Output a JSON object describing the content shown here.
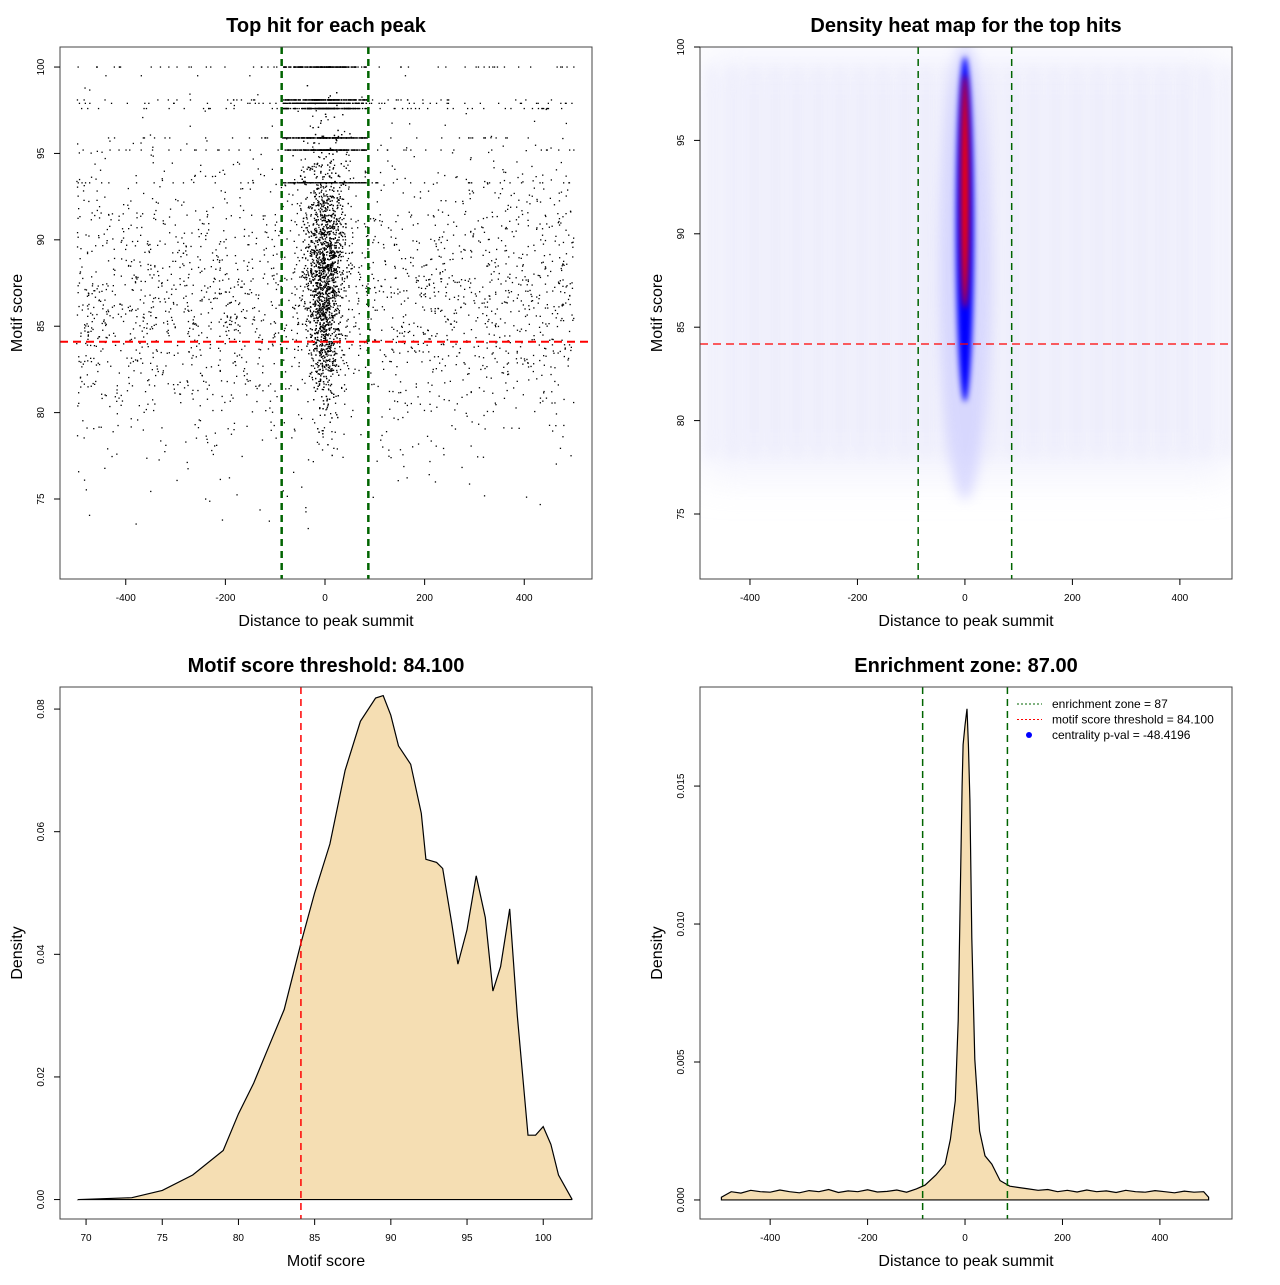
{
  "colors": {
    "threshold": "#ff0000",
    "zone": "#006400",
    "fill": "#f5deb3",
    "points": "#000000",
    "heat_low": "#0000ff",
    "heat_high": "#ff0000",
    "legend_dot": "#0000ff"
  },
  "chart_data": [
    {
      "type": "scatter",
      "title": "Top hit for each peak",
      "xlabel": "Distance to peak summit",
      "ylabel": "Motif score",
      "xlim": [
        -532,
        536
      ],
      "ylim": [
        70.37,
        101.16
      ],
      "xticks": [
        -400,
        -200,
        0,
        200,
        400
      ],
      "yticks": [
        75,
        80,
        85,
        90,
        95,
        100
      ],
      "hlines": [
        {
          "y": 84.1,
          "color": "#ff0000",
          "style": "dashed"
        }
      ],
      "vlines": [
        {
          "x": -87,
          "color": "#006400",
          "style": "dashed"
        },
        {
          "x": 87,
          "color": "#006400",
          "style": "dashed"
        }
      ],
      "description_of_points": "dense cluster centered at 0 (scores ~76-100), sparse uniform background across -500..500 (scores ~72-100)",
      "grid": false
    },
    {
      "type": "heatmap",
      "title": "Density heat map for the top hits",
      "xlabel": "Distance to peak summit",
      "ylabel": "Motif score",
      "xlim": [
        -493,
        497
      ],
      "ylim": [
        71.52,
        100
      ],
      "xticks": [
        -400,
        -200,
        0,
        200,
        400
      ],
      "yticks": [
        75,
        80,
        85,
        90,
        95,
        100
      ],
      "hotspot": {
        "x": 0,
        "y_range": [
          81,
          99.5
        ],
        "core_y_range": [
          86,
          98.5
        ]
      },
      "hlines": [
        {
          "y": 84.1,
          "color": "#ff0000",
          "style": "dashed"
        }
      ],
      "vlines": [
        {
          "x": -87,
          "color": "#006400",
          "style": "dashed"
        },
        {
          "x": 87,
          "color": "#006400",
          "style": "dashed"
        }
      ],
      "grid": false
    },
    {
      "type": "area",
      "title": "Motif score threshold: 84.100",
      "xlabel": "Motif score",
      "ylabel": "Density",
      "xlim": [
        68.29,
        103.2
      ],
      "ylim": [
        -0.00317,
        0.0836
      ],
      "xticks": [
        70,
        75,
        80,
        85,
        90,
        95,
        100
      ],
      "yticks": [
        0,
        0.02,
        0.04,
        0.06,
        0.08
      ],
      "ytick_labels": [
        "0.00",
        "0.02",
        "0.04",
        "0.06",
        "0.08"
      ],
      "x": [
        69.5,
        73,
        75,
        77,
        79,
        80,
        81,
        82,
        83,
        84.1,
        85,
        86,
        87,
        88,
        89,
        89.5,
        90,
        90.5,
        91.3,
        92,
        92.3,
        93,
        93.4,
        94,
        94.4,
        95,
        95.6,
        96.2,
        96.7,
        97.2,
        97.8,
        98.3,
        99,
        99.5,
        100,
        100.5,
        101,
        101.9
      ],
      "y": [
        0,
        0.0003,
        0.0015,
        0.004,
        0.008,
        0.014,
        0.019,
        0.025,
        0.031,
        0.0418,
        0.05,
        0.058,
        0.07,
        0.078,
        0.0818,
        0.0822,
        0.079,
        0.074,
        0.071,
        0.063,
        0.0555,
        0.055,
        0.054,
        0.045,
        0.0384,
        0.044,
        0.0528,
        0.046,
        0.034,
        0.038,
        0.0474,
        0.03,
        0.0105,
        0.0105,
        0.0119,
        0.009,
        0.004,
        0
      ],
      "vlines": [
        {
          "x": 84.1,
          "color": "#ff0000",
          "style": "dashed"
        }
      ],
      "grid": false
    },
    {
      "type": "area",
      "title": "Enrichment zone: 87.00",
      "xlabel": "Distance to peak summit",
      "ylabel": "Density",
      "xlim": [
        -544,
        548
      ],
      "ylim": [
        -0.00069,
        0.01859
      ],
      "xticks": [
        -400,
        -200,
        0,
        200,
        400
      ],
      "yticks": [
        0,
        0.005,
        0.01,
        0.015
      ],
      "ytick_labels": [
        "0.000",
        "0.005",
        "0.010",
        "0.015"
      ],
      "x": [
        -500,
        -480,
        -460,
        -440,
        -420,
        -400,
        -380,
        -360,
        -340,
        -320,
        -300,
        -280,
        -260,
        -240,
        -220,
        -200,
        -180,
        -160,
        -140,
        -120,
        -100,
        -82,
        -60,
        -41,
        -30,
        -20,
        -14,
        -10,
        -6,
        -4,
        0,
        4,
        7,
        10,
        14,
        20,
        30,
        41,
        55,
        72,
        92,
        110,
        130,
        150,
        170,
        190,
        210,
        230,
        250,
        270,
        290,
        310,
        330,
        350,
        370,
        390,
        410,
        430,
        450,
        470,
        490,
        500
      ],
      "y": [
        0.0001,
        0.0003,
        0.00025,
        0.00035,
        0.0003,
        0.00028,
        0.00036,
        0.0003,
        0.00026,
        0.00034,
        0.0003,
        0.00038,
        0.00027,
        0.00033,
        0.0003,
        0.00037,
        0.00029,
        0.00031,
        0.00036,
        0.00028,
        0.0004,
        0.00054,
        0.0009,
        0.0013,
        0.0022,
        0.0036,
        0.0065,
        0.0109,
        0.015,
        0.0165,
        0.0172,
        0.0178,
        0.0165,
        0.0145,
        0.0095,
        0.0051,
        0.0025,
        0.0016,
        0.0013,
        0.0007,
        0.0005,
        0.00045,
        0.0004,
        0.00035,
        0.00038,
        0.0003,
        0.00035,
        0.00029,
        0.00036,
        0.0003,
        0.00033,
        0.00027,
        0.00035,
        0.0003,
        0.00028,
        0.00034,
        0.0003,
        0.00026,
        0.00032,
        0.00028,
        0.0003,
        0.0001
      ],
      "vlines": [
        {
          "x": -87,
          "color": "#006400",
          "style": "dashed"
        },
        {
          "x": 87,
          "color": "#006400",
          "style": "dashed"
        }
      ],
      "legend": {
        "placement": "top-right",
        "entries": [
          {
            "label": "enrichment zone = 87",
            "color": "#006400",
            "style": "dotted"
          },
          {
            "label": "motif score threshold = 84.100",
            "color": "#ff0000",
            "style": "dotted"
          },
          {
            "label": "centrality p-val = -48.4196",
            "color": "#0000ff",
            "style": "point"
          }
        ]
      },
      "grid": false
    }
  ]
}
